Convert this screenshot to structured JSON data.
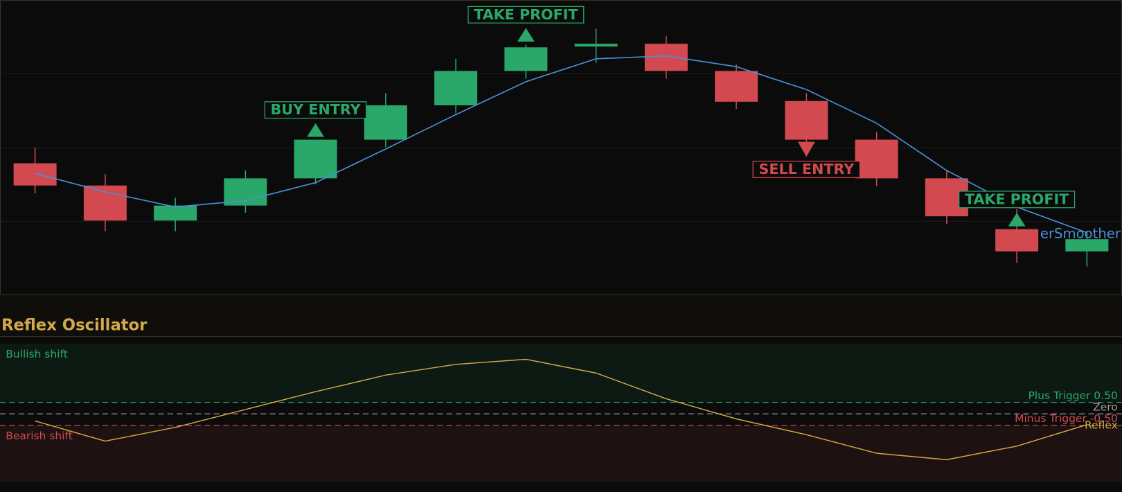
{
  "chart_data": [
    {
      "type": "candlestick",
      "ylim": [
        0,
        410
      ],
      "grid": true,
      "up_color": "#2aa86a",
      "down_color": "#d24a4f",
      "open": [
        182,
        151,
        102,
        123,
        161,
        215,
        263,
        311,
        347,
        349,
        311,
        269,
        215,
        161,
        90,
        59
      ],
      "high": [
        204,
        167,
        134,
        172,
        215,
        280,
        328,
        348,
        370,
        360,
        320,
        280,
        226,
        172,
        118,
        86
      ],
      "low": [
        140,
        87,
        87,
        113,
        153,
        205,
        252,
        300,
        322,
        300,
        258,
        205,
        150,
        97,
        43,
        38
      ],
      "close": [
        151,
        102,
        123,
        161,
        215,
        263,
        311,
        344,
        347,
        311,
        268,
        215,
        161,
        108,
        59,
        76
      ],
      "series": [
        {
          "name": "erSmoother",
          "color": "#4a8fd8",
          "values": [
            168,
            142,
            121,
            130,
            155,
            202,
            250,
            296,
            328,
            332,
            317,
            285,
            238,
            172,
            121,
            85
          ]
        }
      ],
      "annotations": [
        {
          "label": "BUY ENTRY",
          "at": 4,
          "color": "#2aa86a"
        },
        {
          "label": "TAKE PROFIT",
          "at": 7,
          "color": "#2aa86a"
        },
        {
          "label": "SELL ENTRY",
          "at": 11,
          "color": "#d24a4f"
        },
        {
          "label": "TAKE PROFIT",
          "at": 14,
          "color": "#2aa86a"
        }
      ]
    },
    {
      "type": "line",
      "title": "Reflex Oscillator",
      "ylim": [
        -2.97,
        3.06
      ],
      "series": [
        {
          "name": "Reflex",
          "color": "#d4a94a",
          "values": [
            -0.31,
            -1.19,
            -0.59,
            0.19,
            0.97,
            1.69,
            2.16,
            2.38,
            1.78,
            0.66,
            -0.22,
            -0.91,
            -1.72,
            -2.0,
            -1.41,
            -0.47
          ]
        }
      ],
      "levels": [
        {
          "label": "Plus Trigger 0.50",
          "value": 0.5,
          "color": "#2aa86a"
        },
        {
          "label": "Zero",
          "value": 0,
          "color": "#9a9a9a"
        },
        {
          "label": "Minus Trigger -0.50",
          "value": -0.5,
          "color": "#d24a4f"
        }
      ],
      "zones": [
        {
          "label": "Bullish shift",
          "color": "#2aa86a"
        },
        {
          "label": "Bearish shift",
          "color": "#d24a4f"
        }
      ]
    }
  ]
}
